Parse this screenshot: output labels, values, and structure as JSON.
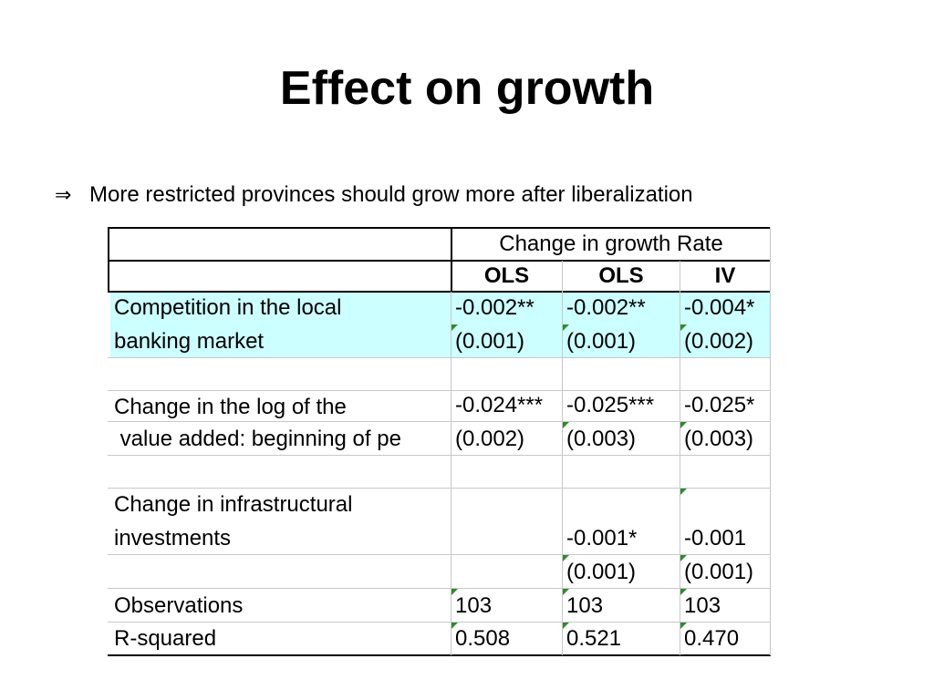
{
  "slide": {
    "title": "Effect on growth",
    "bullet_symbol": "⇒",
    "bullet_text": "More restricted provinces should grow more after liberalization"
  },
  "table": {
    "group_header": "Change in growth Rate",
    "columns": [
      "OLS",
      "OLS",
      "IV"
    ],
    "rows": {
      "competition": {
        "label1": "Competition in the local",
        "label2": "banking market",
        "coef": [
          "-0.002**",
          "-0.002**",
          "-0.004*"
        ],
        "se": [
          "(0.001)",
          "(0.001)",
          "(0.002)"
        ]
      },
      "value_added": {
        "label1": "Change in the log of the",
        "label2": " value added: beginning of pe",
        "coef": [
          "-0.024***",
          "-0.025***",
          "-0.025*"
        ],
        "se": [
          "(0.002)",
          "(0.003)",
          "(0.003)"
        ]
      },
      "infrastructure": {
        "label1": "Change in infrastructural",
        "label2": "investments",
        "coef": [
          "",
          "-0.001*",
          "-0.001"
        ],
        "se": [
          "",
          "(0.001)",
          "(0.001)"
        ]
      },
      "observations": {
        "label": "Observations",
        "values": [
          "103",
          "103",
          "103"
        ]
      },
      "r_squared": {
        "label": "R-squared",
        "values": [
          "0.508",
          "0.521",
          "0.470"
        ]
      }
    },
    "colors": {
      "highlight": "#ccffff",
      "cell_marker": "#2e8b2e"
    }
  }
}
